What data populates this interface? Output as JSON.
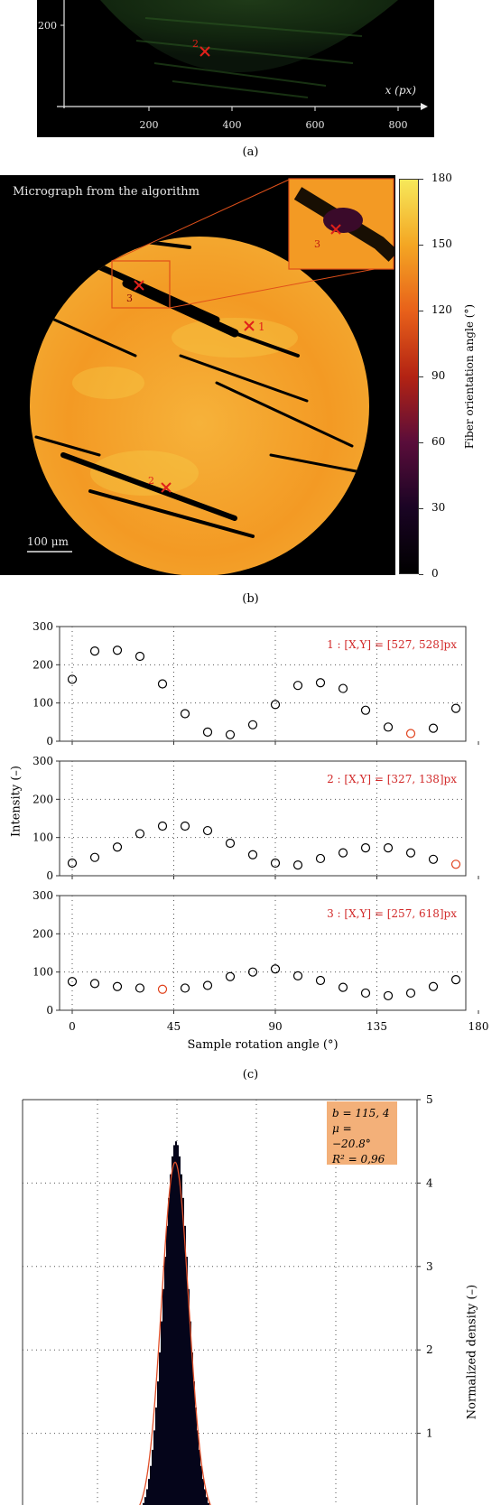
{
  "panel_a": {
    "x_axis_label": "x (px)",
    "x_ticks": [
      "200",
      "400",
      "600",
      "800"
    ],
    "y_tick": "200",
    "marker_label": "2",
    "caption": "(a)"
  },
  "panel_b": {
    "title": "Micrograph from the algorithm",
    "scale_bar": "100 μm",
    "markers": [
      {
        "label": "1"
      },
      {
        "label": "2"
      },
      {
        "label": "3"
      }
    ],
    "inset_marker_label": "3",
    "colorbar_label": "Fiber orientation angle (°)",
    "colorbar_ticks": [
      "180",
      "150",
      "120",
      "90",
      "60",
      "30",
      "0"
    ],
    "colorbar_colors": [
      "#f6e85a",
      "#f4a623",
      "#e8611a",
      "#b32313",
      "#5a0d3a",
      "#1a0424",
      "#000000"
    ],
    "caption": "(b)"
  },
  "panel_c": {
    "ylabel": "Intensity (–)",
    "xlabel": "Sample rotation angle (°)",
    "x_ticks": [
      "0",
      "45",
      "90",
      "135",
      "180"
    ],
    "y_ticks": [
      "0",
      "100",
      "200",
      "300"
    ],
    "caption": "(c)",
    "highlight_color": "#e0401a",
    "point_color": "#000000",
    "annotation_color": "#d22a2a"
  },
  "panel_d": {
    "stats_lines": [
      "b = 115, 4",
      "μ = −20.8°",
      "R² = 0,96"
    ],
    "stats_bg": "#f3b079",
    "ylabel": "Normalized density (–)",
    "y_ticks": [
      "1",
      "2",
      "3",
      "4",
      "5"
    ],
    "fit_color": "#e0502a"
  },
  "chart_data": [
    {
      "type": "scatter",
      "annotation": "1 : [X,Y] = [527, 528]px",
      "x": [
        0,
        10,
        20,
        30,
        40,
        50,
        60,
        70,
        80,
        90,
        100,
        110,
        120,
        130,
        140,
        150,
        160,
        170
      ],
      "y": [
        162,
        236,
        238,
        222,
        150,
        72,
        24,
        17,
        43,
        96,
        146,
        153,
        138,
        81,
        37,
        20,
        34,
        86
      ],
      "highlight_index": 15,
      "xlim": [
        0,
        180
      ],
      "ylim": [
        0,
        300
      ]
    },
    {
      "type": "scatter",
      "annotation": "2 : [X,Y] = [327, 138]px",
      "x": [
        0,
        10,
        20,
        30,
        40,
        50,
        60,
        70,
        80,
        90,
        100,
        110,
        120,
        130,
        140,
        150,
        160,
        170
      ],
      "y": [
        33,
        48,
        75,
        110,
        130,
        130,
        118,
        85,
        55,
        33,
        28,
        45,
        60,
        73,
        73,
        60,
        43,
        30
      ],
      "highlight_index": 17,
      "xlim": [
        0,
        180
      ],
      "ylim": [
        0,
        300
      ]
    },
    {
      "type": "scatter",
      "annotation": "3 : [X,Y] = [257, 618]px",
      "x": [
        0,
        10,
        20,
        30,
        40,
        50,
        60,
        70,
        80,
        90,
        100,
        110,
        120,
        130,
        140,
        150,
        160,
        170
      ],
      "y": [
        75,
        70,
        62,
        58,
        55,
        58,
        65,
        88,
        100,
        108,
        90,
        78,
        60,
        45,
        38,
        45,
        62,
        80
      ],
      "highlight_index": 4,
      "xlim": [
        0,
        180
      ],
      "ylim": [
        0,
        300
      ]
    },
    {
      "type": "bar",
      "ylim": [
        0,
        5
      ],
      "peak": 4.5,
      "fit_peak": 4.25
    }
  ]
}
